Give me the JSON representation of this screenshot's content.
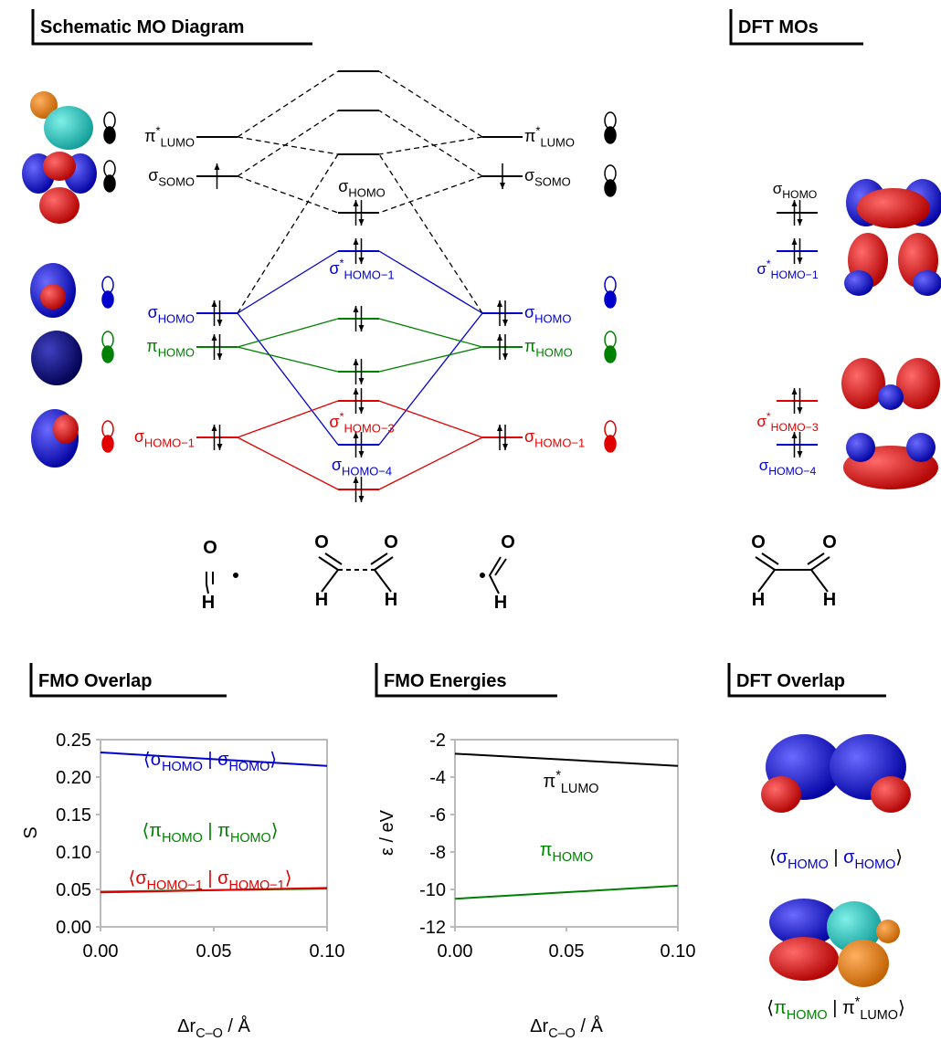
{
  "mo_diagram": {
    "title": "Schematic MO Diagram",
    "left": [
      {
        "symbol": "π",
        "sup": "*",
        "sub": "LUMO"
      },
      {
        "symbol": "σ",
        "sub": "SOMO"
      },
      {
        "symbol": "σ",
        "sub": "HOMO"
      },
      {
        "symbol": "π",
        "sub": "HOMO"
      },
      {
        "symbol": "σ",
        "sub": "HOMO−1"
      }
    ],
    "center": [
      {
        "symbol": "σ",
        "sub": "HOMO"
      },
      {
        "symbol": "σ",
        "sup": "*",
        "sub": "HOMO−1"
      },
      {
        "symbol": "σ",
        "sup": "*",
        "sub": "HOMO−3"
      },
      {
        "symbol": "σ",
        "sub": "HOMO−4"
      }
    ],
    "right": [
      {
        "symbol": "π",
        "sup": "*",
        "sub": "LUMO"
      },
      {
        "symbol": "σ",
        "sub": "SOMO"
      },
      {
        "symbol": "σ",
        "sub": "HOMO"
      },
      {
        "symbol": "π",
        "sub": "HOMO"
      },
      {
        "symbol": "σ",
        "sub": "HOMO−1"
      }
    ],
    "structures": [
      {
        "atoms": [
          "O",
          "H"
        ]
      },
      {
        "atoms": [
          "O",
          "O",
          "H",
          "H"
        ]
      },
      {
        "atoms": [
          "O",
          "H"
        ]
      }
    ]
  },
  "dft_mos": {
    "title": "DFT MOs",
    "levels": [
      {
        "symbol": "σ",
        "sub": "HOMO"
      },
      {
        "symbol": "σ",
        "sup": "*",
        "sub": "HOMO−1"
      },
      {
        "symbol": "σ",
        "sup": "*",
        "sub": "HOMO−3"
      },
      {
        "symbol": "σ",
        "sub": "HOMO−4"
      }
    ],
    "structure": {
      "atoms": [
        "O",
        "O",
        "H",
        "H"
      ]
    }
  },
  "dft_overlap": {
    "title": "DFT Overlap",
    "labels": [
      {
        "delims": [
          "⟨",
          " | ",
          "⟩"
        ],
        "bra": {
          "symbol": "σ",
          "sub": "HOMO"
        },
        "ket": {
          "symbol": "σ",
          "sub": "HOMO"
        }
      },
      {
        "delims": [
          "⟨",
          " | ",
          "⟩"
        ],
        "bra": {
          "symbol": "π",
          "sub": "HOMO"
        },
        "ket": {
          "symbol": "π",
          "sup": "*",
          "sub": "LUMO"
        }
      }
    ]
  },
  "chart_data": [
    {
      "type": "line",
      "title": "FMO Overlap",
      "ylabel": "S",
      "xlabel": {
        "text": "Δr",
        "sub": "C–O",
        "unit": " / Å"
      },
      "x": [
        0,
        0.1
      ],
      "xlim": [
        0,
        0.1
      ],
      "xticks": [
        {
          "value": 0,
          "label": "0.00"
        },
        0.05,
        {
          "value": 0.1,
          "label": "0.10"
        }
      ],
      "ylim": [
        0,
        0.25
      ],
      "yticks": [
        {
          "value": 0,
          "label": "0.00"
        },
        0.05,
        {
          "value": 0.1,
          "label": "0.10"
        },
        0.15,
        {
          "value": 0.2,
          "label": "0.20"
        },
        0.25
      ],
      "series": [
        {
          "color": "#0000cc",
          "values": [
            0.233,
            0.215
          ],
          "label": {
            "delims": [
              "⟨",
              " | ",
              "⟩"
            ],
            "bra": {
              "symbol": "σ",
              "sub": "HOMO"
            },
            "ket": {
              "symbol": "σ",
              "sub": "HOMO"
            }
          }
        },
        {
          "color": "#008000",
          "values": [
            0.047,
            0.051
          ],
          "label": {
            "delims": [
              "⟨",
              " | ",
              "⟩"
            ],
            "bra": {
              "symbol": "π",
              "sub": "HOMO"
            },
            "ket": {
              "symbol": "π",
              "sub": "HOMO"
            }
          }
        },
        {
          "color": "#e00000",
          "values": [
            0.046,
            0.052
          ],
          "label": {
            "delims": [
              "⟨",
              " | ",
              "⟩"
            ],
            "bra": {
              "symbol": "σ",
              "sub": "HOMO−1"
            },
            "ket": {
              "symbol": "σ",
              "sub": "HOMO−1"
            }
          }
        }
      ]
    },
    {
      "type": "line",
      "title": "FMO Energies",
      "ylabel": "ε / eV",
      "xlabel": {
        "text": "Δr",
        "sub": "C–O",
        "unit": " / Å"
      },
      "x": [
        0,
        0.1
      ],
      "xlim": [
        0,
        0.1
      ],
      "xticks": [
        {
          "value": 0,
          "label": "0.00"
        },
        0.05,
        {
          "value": 0.1,
          "label": "0.10"
        }
      ],
      "ylim": [
        -12,
        -2
      ],
      "yticks": [
        -12,
        -10,
        -8,
        -6,
        -4,
        -2
      ],
      "series": [
        {
          "color": "#000000",
          "values": [
            -2.75,
            -3.4
          ],
          "label": {
            "symbol": "π",
            "sup": "*",
            "sub": "LUMO"
          }
        },
        {
          "color": "#008000",
          "values": [
            -10.5,
            -9.8
          ],
          "label": {
            "symbol": "π",
            "sub": "HOMO"
          }
        }
      ]
    }
  ]
}
